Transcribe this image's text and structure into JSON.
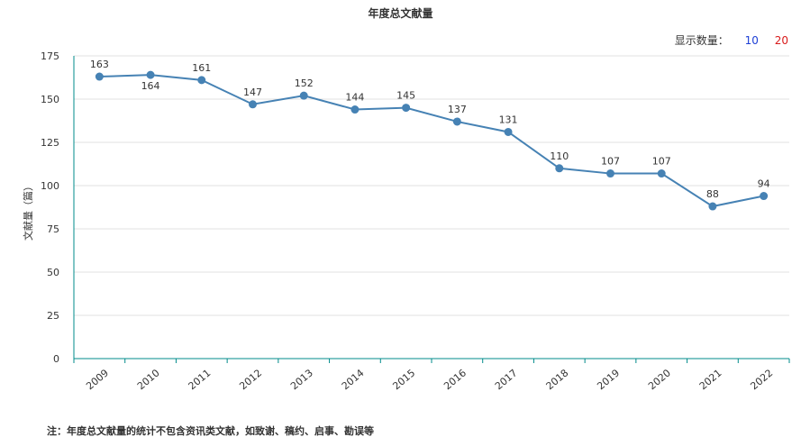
{
  "chart_data": {
    "type": "line",
    "title": "年度总文献量",
    "ylabel": "文献量（篇）",
    "xlabel": "",
    "categories": [
      "2009",
      "2010",
      "2011",
      "2012",
      "2013",
      "2014",
      "2015",
      "2016",
      "2017",
      "2018",
      "2019",
      "2020",
      "2021",
      "2022"
    ],
    "series": [
      {
        "values": [
          163,
          164,
          161,
          147,
          152,
          144,
          145,
          137,
          131,
          110,
          107,
          107,
          88,
          94
        ]
      }
    ],
    "ylim": [
      0,
      175
    ],
    "yticks": [
      0,
      25,
      50,
      75,
      100,
      125,
      150,
      175
    ],
    "grid": true,
    "line_color": "#4682b4"
  },
  "controls": {
    "count_label": "显示数量：",
    "options": [
      "10",
      "20"
    ],
    "option_colors": [
      "#1d3fd6",
      "#d81b1b"
    ]
  },
  "footnote": "注：年度总文献量的统计不包含资讯类文献，如致谢、稿约、启事、勘误等"
}
